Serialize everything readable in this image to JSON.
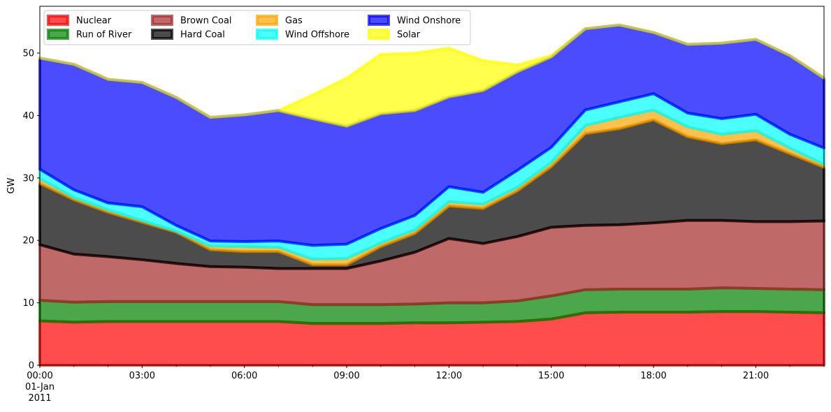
{
  "chart_data": {
    "type": "area",
    "stacked": true,
    "ylabel": "GW",
    "xlabel": "",
    "ylim": [
      0,
      57.5
    ],
    "xlim": [
      "2011-01-01T00:00",
      "2011-01-01T23:00"
    ],
    "yticks": [
      0,
      10,
      20,
      30,
      40,
      50
    ],
    "xticks": [
      {
        "t": "2011-01-01T00:00",
        "lines": [
          "00:00",
          "01-Jan",
          "2011"
        ]
      },
      {
        "t": "2011-01-01T03:00",
        "lines": [
          "03:00"
        ]
      },
      {
        "t": "2011-01-01T06:00",
        "lines": [
          "06:00"
        ]
      },
      {
        "t": "2011-01-01T09:00",
        "lines": [
          "09:00"
        ]
      },
      {
        "t": "2011-01-01T12:00",
        "lines": [
          "12:00"
        ]
      },
      {
        "t": "2011-01-01T15:00",
        "lines": [
          "15:00"
        ]
      },
      {
        "t": "2011-01-01T18:00",
        "lines": [
          "18:00"
        ]
      },
      {
        "t": "2011-01-01T21:00",
        "lines": [
          "21:00"
        ]
      }
    ],
    "legend_position": "upper-left",
    "x": [
      "00:00",
      "01:00",
      "02:00",
      "03:00",
      "04:00",
      "05:00",
      "06:00",
      "07:00",
      "08:00",
      "09:00",
      "10:00",
      "11:00",
      "12:00",
      "13:00",
      "14:00",
      "15:00",
      "16:00",
      "17:00",
      "18:00",
      "19:00",
      "20:00",
      "21:00",
      "22:00",
      "23:00"
    ],
    "series": [
      {
        "name": "Nuclear",
        "color": "#ff0000",
        "values": [
          7.1,
          6.9,
          7.0,
          7.0,
          7.0,
          7.0,
          7.0,
          7.0,
          6.7,
          6.7,
          6.7,
          6.8,
          6.8,
          6.9,
          7.0,
          7.4,
          8.4,
          8.5,
          8.5,
          8.5,
          8.6,
          8.6,
          8.5,
          8.4
        ]
      },
      {
        "name": "Run of River",
        "color": "#008000",
        "values": [
          3.3,
          3.2,
          3.2,
          3.2,
          3.2,
          3.2,
          3.2,
          3.2,
          3.0,
          3.0,
          3.0,
          3.0,
          3.2,
          3.1,
          3.3,
          3.7,
          3.7,
          3.7,
          3.7,
          3.7,
          3.8,
          3.7,
          3.7,
          3.7
        ]
      },
      {
        "name": "Brown Coal",
        "color": "#a52a2a",
        "values": [
          8.9,
          7.7,
          7.2,
          6.7,
          6.1,
          5.6,
          5.5,
          5.3,
          5.8,
          5.8,
          7.0,
          8.3,
          10.3,
          9.5,
          10.3,
          11.0,
          10.3,
          10.3,
          10.6,
          11.0,
          10.8,
          10.7,
          10.8,
          11.0
        ]
      },
      {
        "name": "Hard Coal",
        "color": "#000000",
        "values": [
          9.8,
          8.7,
          7.1,
          6.0,
          5.0,
          2.7,
          2.5,
          2.7,
          0.6,
          0.6,
          2.3,
          3.0,
          5.2,
          5.6,
          7.3,
          9.7,
          14.7,
          15.4,
          16.5,
          13.4,
          12.3,
          13.1,
          10.9,
          8.6
        ]
      },
      {
        "name": "Gas",
        "color": "#ffa500",
        "values": [
          0.8,
          0.4,
          0.4,
          0.3,
          0.2,
          0.6,
          0.8,
          0.7,
          0.9,
          1.0,
          0.6,
          0.6,
          0.7,
          0.7,
          0.6,
          0.7,
          1.3,
          1.8,
          1.6,
          1.6,
          1.5,
          1.5,
          0.9,
          0.5
        ]
      },
      {
        "name": "Wind Offshore",
        "color": "#00ffff",
        "values": [
          1.5,
          1.2,
          1.1,
          2.2,
          0.9,
          0.8,
          0.8,
          1.0,
          2.2,
          2.3,
          2.3,
          2.3,
          2.4,
          1.9,
          2.7,
          2.4,
          2.5,
          2.5,
          2.6,
          2.2,
          2.5,
          2.6,
          2.2,
          2.6
        ]
      },
      {
        "name": "Wind Onshore",
        "color": "#0000ff",
        "values": [
          17.8,
          20.1,
          19.8,
          19.9,
          20.5,
          19.8,
          20.3,
          20.9,
          20.3,
          18.9,
          18.4,
          16.8,
          14.4,
          16.3,
          15.8,
          14.5,
          13.0,
          12.3,
          9.8,
          11.0,
          12.1,
          12.0,
          12.6,
          11.2
        ]
      },
      {
        "name": "Solar",
        "color": "#ffff00",
        "values": [
          0,
          0,
          0,
          0,
          0,
          0,
          0,
          0,
          3.8,
          7.7,
          9.5,
          9.2,
          7.8,
          4.8,
          1.1,
          0.2,
          0,
          0,
          0,
          0,
          0,
          0,
          0,
          0
        ]
      }
    ]
  }
}
